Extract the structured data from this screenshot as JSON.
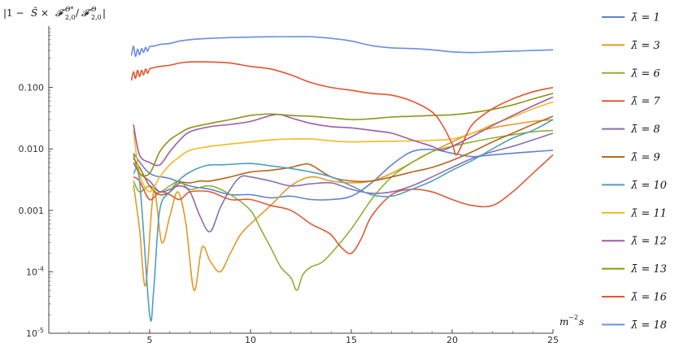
{
  "chart_data": {
    "type": "line",
    "ylabel": "|1 − Ŝ × F^{Θ*}_{2,0}/F^{Θ}_{2,0}|",
    "xlabel": "m^{-2}s",
    "xlim": [
      0,
      25
    ],
    "ylim": [
      1e-05,
      1
    ],
    "yscale": "log",
    "legend_position": "right",
    "x_ticks": [
      5,
      10,
      15,
      20,
      25
    ],
    "x_tick_labels": [
      "5",
      "10",
      "15",
      "20",
      "25"
    ],
    "y_ticks": [
      1e-05,
      0.0001,
      0.001,
      0.01,
      0.1
    ],
    "y_tick_labels": [
      "10^-5",
      "10^-4",
      "0.001",
      "0.010",
      "0.100"
    ],
    "series": [
      {
        "name": "λ̄ = 1",
        "color": "#5c84cf",
        "x": [
          4.2,
          5,
          6,
          7,
          8,
          9,
          10,
          11,
          12,
          13,
          14,
          15,
          16,
          17,
          18,
          19,
          20,
          21,
          22,
          23,
          24,
          25
        ],
        "y": [
          0.0085,
          0.004,
          0.0033,
          0.0025,
          0.0022,
          0.0018,
          0.0018,
          0.0016,
          0.0017,
          0.0015,
          0.0015,
          0.0017,
          0.0028,
          0.0055,
          0.009,
          0.0098,
          0.0085,
          0.0075,
          0.008,
          0.0085,
          0.009,
          0.0095
        ]
      },
      {
        "name": "λ̄ = 3",
        "color": "#e19a28",
        "x": [
          4.2,
          4.5,
          4.8,
          5.2,
          5.6,
          6,
          6.4,
          6.8,
          7.2,
          7.6,
          8,
          8.5,
          9,
          9.5,
          10,
          11,
          12,
          13,
          14,
          15,
          16,
          17,
          18,
          19,
          20,
          21,
          22,
          23,
          24,
          25
        ],
        "y": [
          0.0026,
          0.0005,
          6e-05,
          0.002,
          0.0003,
          0.0008,
          0.002,
          0.0006,
          5e-05,
          0.00025,
          0.00015,
          0.0001,
          0.0002,
          0.0004,
          0.0006,
          0.0012,
          0.0025,
          0.0035,
          0.003,
          0.0028,
          0.003,
          0.004,
          0.006,
          0.009,
          0.013,
          0.018,
          0.022,
          0.025,
          0.028,
          0.03
        ]
      },
      {
        "name": "λ̄ = 6",
        "color": "#8fb032",
        "x": [
          4.2,
          4.5,
          5,
          5.5,
          6,
          6.5,
          7,
          8,
          9,
          10,
          10.5,
          11,
          11.5,
          12,
          12.3,
          12.6,
          13,
          13.5,
          14,
          15,
          16,
          17,
          18,
          19,
          20,
          21,
          22,
          23,
          24,
          25
        ],
        "y": [
          0.003,
          0.002,
          0.0025,
          0.002,
          0.0025,
          0.003,
          0.0022,
          0.0025,
          0.0018,
          0.001,
          0.0005,
          0.00025,
          0.00012,
          8e-05,
          5e-05,
          9e-05,
          0.00012,
          0.00014,
          0.0002,
          0.0005,
          0.0015,
          0.0035,
          0.006,
          0.009,
          0.011,
          0.013,
          0.015,
          0.017,
          0.019,
          0.02
        ]
      },
      {
        "name": "λ̄ = 7",
        "color": "#de5a37",
        "x": [
          4.2,
          4.5,
          5,
          5.5,
          6,
          6.5,
          7,
          8,
          9,
          10,
          11,
          12,
          13,
          13.5,
          14,
          14.5,
          15,
          15.5,
          16,
          17,
          18,
          19,
          20,
          21,
          22,
          23,
          24,
          25
        ],
        "y": [
          0.0035,
          0.003,
          0.0015,
          0.002,
          0.0018,
          0.0015,
          0.002,
          0.002,
          0.0015,
          0.0015,
          0.0012,
          0.001,
          0.0006,
          0.0005,
          0.0004,
          0.00025,
          0.0002,
          0.00035,
          0.0008,
          0.0018,
          0.0022,
          0.002,
          0.0015,
          0.0012,
          0.0012,
          0.002,
          0.004,
          0.008
        ]
      },
      {
        "name": "λ̄ = 8",
        "color": "#8a6db3",
        "x": [
          4.2,
          4.5,
          5,
          5.5,
          6,
          6.5,
          7,
          7.5,
          8,
          8.5,
          9,
          9.5,
          10,
          11,
          12,
          13,
          14,
          15,
          16,
          17,
          18,
          19,
          20,
          21,
          22,
          23,
          24,
          25
        ],
        "y": [
          0.006,
          0.004,
          0.003,
          0.002,
          0.0022,
          0.0025,
          0.002,
          0.0008,
          0.00045,
          0.0011,
          0.0022,
          0.0035,
          0.0035,
          0.003,
          0.0025,
          0.0027,
          0.0028,
          0.0022,
          0.0019,
          0.002,
          0.0025,
          0.0035,
          0.005,
          0.007,
          0.009,
          0.011,
          0.014,
          0.018
        ]
      },
      {
        "name": "λ̄ = 9",
        "color": "#b8651e",
        "x": [
          4.2,
          4.5,
          5,
          5.5,
          6,
          6.5,
          7,
          7.5,
          8,
          9,
          10,
          11,
          12,
          12.5,
          13,
          14,
          15,
          16,
          17,
          18,
          19,
          20,
          21,
          22,
          23,
          24,
          25
        ],
        "y": [
          0.007,
          0.005,
          0.0025,
          0.0018,
          0.002,
          0.0028,
          0.0028,
          0.003,
          0.003,
          0.0035,
          0.0042,
          0.0045,
          0.005,
          0.0055,
          0.0055,
          0.0035,
          0.003,
          0.003,
          0.0035,
          0.0042,
          0.005,
          0.0065,
          0.009,
          0.013,
          0.018,
          0.025,
          0.034
        ]
      },
      {
        "name": "λ̄ = 10",
        "color": "#4f9ec4",
        "x": [
          4.2,
          4.5,
          5,
          5.2,
          5.5,
          6,
          6.5,
          7,
          7.5,
          8,
          8.5,
          9,
          10,
          11,
          12,
          13,
          14,
          15,
          16,
          17,
          18,
          19,
          20,
          21,
          22,
          23,
          24,
          25
        ],
        "y": [
          0.004,
          0.003,
          2e-05,
          5e-05,
          0.001,
          0.002,
          0.0032,
          0.0042,
          0.005,
          0.0055,
          0.0055,
          0.0056,
          0.0058,
          0.0053,
          0.0048,
          0.0042,
          0.0035,
          0.0025,
          0.0018,
          0.0017,
          0.0022,
          0.003,
          0.0045,
          0.0065,
          0.01,
          0.015,
          0.02,
          0.03
        ]
      },
      {
        "name": "λ̄ = 11",
        "color": "#f2b920",
        "x": [
          4.2,
          4.5,
          5,
          5.5,
          6,
          6.5,
          7,
          8,
          9,
          10,
          11,
          12,
          13,
          14,
          15,
          16,
          17,
          18,
          19,
          20,
          21,
          22,
          23,
          24,
          25
        ],
        "y": [
          0.02,
          0.004,
          0.002,
          0.0035,
          0.0055,
          0.0075,
          0.0095,
          0.011,
          0.012,
          0.013,
          0.014,
          0.0145,
          0.0145,
          0.0135,
          0.013,
          0.0132,
          0.0133,
          0.0135,
          0.0138,
          0.0145,
          0.018,
          0.025,
          0.033,
          0.045,
          0.058
        ]
      },
      {
        "name": "λ̄ = 12",
        "color": "#a05aa7",
        "x": [
          4.2,
          4.5,
          5,
          5.5,
          6,
          6.5,
          7,
          8,
          9,
          10,
          11,
          11.5,
          12,
          13,
          14,
          15,
          16,
          17,
          18,
          19,
          19.5,
          20,
          21,
          22,
          23,
          24,
          25
        ],
        "y": [
          0.025,
          0.008,
          0.006,
          0.0055,
          0.009,
          0.014,
          0.019,
          0.023,
          0.025,
          0.028,
          0.035,
          0.036,
          0.032,
          0.026,
          0.023,
          0.022,
          0.02,
          0.018,
          0.014,
          0.011,
          0.0095,
          0.011,
          0.016,
          0.024,
          0.035,
          0.05,
          0.07
        ]
      },
      {
        "name": "λ̄ = 13",
        "color": "#8c9617",
        "x": [
          4.2,
          4.5,
          5,
          5.5,
          6,
          6.5,
          7,
          8,
          9,
          10,
          11,
          12,
          13,
          14,
          15,
          16,
          17,
          18,
          19,
          20,
          21,
          22,
          23,
          24,
          25
        ],
        "y": [
          0.008,
          0.004,
          0.004,
          0.009,
          0.014,
          0.018,
          0.022,
          0.026,
          0.03,
          0.035,
          0.037,
          0.035,
          0.034,
          0.032,
          0.03,
          0.031,
          0.033,
          0.034,
          0.035,
          0.036,
          0.039,
          0.044,
          0.052,
          0.065,
          0.08
        ]
      },
      {
        "name": "λ̄ = 16",
        "color": "#e4542e",
        "x": [
          4.1,
          4.2,
          4.3,
          4.4,
          4.5,
          4.6,
          4.7,
          4.8,
          4.9,
          5,
          5.2,
          5.5,
          6,
          6.5,
          7,
          8,
          9,
          10,
          11,
          12,
          13,
          14,
          15,
          16,
          17,
          18,
          19,
          19.5,
          20,
          20.2,
          20.5,
          21,
          22,
          23,
          24,
          25
        ],
        "y": [
          0.13,
          0.18,
          0.14,
          0.19,
          0.15,
          0.19,
          0.16,
          0.2,
          0.17,
          0.2,
          0.21,
          0.22,
          0.23,
          0.25,
          0.26,
          0.26,
          0.25,
          0.22,
          0.2,
          0.16,
          0.12,
          0.1,
          0.09,
          0.08,
          0.075,
          0.06,
          0.04,
          0.025,
          0.012,
          0.008,
          0.012,
          0.025,
          0.045,
          0.065,
          0.085,
          0.1
        ]
      },
      {
        "name": "λ̄ = 18",
        "color": "#6a8ee0",
        "x": [
          4.1,
          4.2,
          4.3,
          4.4,
          4.5,
          4.6,
          4.7,
          4.8,
          4.9,
          5,
          5.2,
          5.5,
          6,
          6.5,
          7,
          8,
          9,
          10,
          11,
          12,
          13,
          14,
          15,
          16,
          17,
          18,
          19,
          20,
          21,
          22,
          23,
          24,
          25
        ],
        "y": [
          0.33,
          0.47,
          0.32,
          0.42,
          0.34,
          0.43,
          0.37,
          0.45,
          0.39,
          0.46,
          0.47,
          0.5,
          0.52,
          0.57,
          0.6,
          0.63,
          0.65,
          0.66,
          0.67,
          0.67,
          0.67,
          0.63,
          0.57,
          0.48,
          0.44,
          0.43,
          0.41,
          0.38,
          0.37,
          0.38,
          0.39,
          0.4,
          0.41
        ]
      }
    ]
  }
}
